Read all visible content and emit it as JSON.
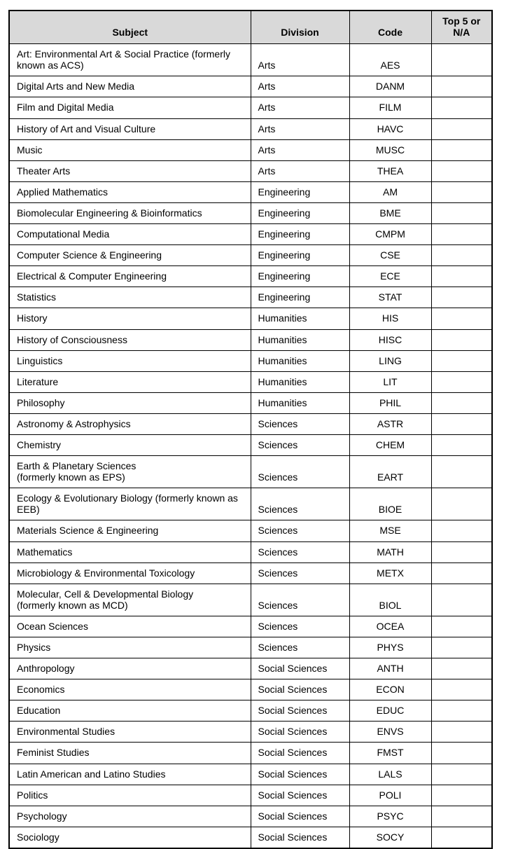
{
  "table": {
    "headers": [
      "Subject",
      "Division",
      "Code",
      "Top 5 or N/A"
    ],
    "rows": [
      {
        "subject": "Art: Environmental Art & Social Practice (formerly known as ACS)",
        "division": "Arts",
        "code": "AES",
        "top5": ""
      },
      {
        "subject": "Digital Arts and New Media",
        "division": "Arts",
        "code": "DANM",
        "top5": ""
      },
      {
        "subject": "Film and Digital Media",
        "division": "Arts",
        "code": "FILM",
        "top5": ""
      },
      {
        "subject": "History of Art and Visual Culture",
        "division": "Arts",
        "code": "HAVC",
        "top5": ""
      },
      {
        "subject": "Music",
        "division": "Arts",
        "code": "MUSC",
        "top5": ""
      },
      {
        "subject": "Theater Arts",
        "division": "Arts",
        "code": "THEA",
        "top5": ""
      },
      {
        "subject": "Applied Mathematics",
        "division": "Engineering",
        "code": "AM",
        "top5": ""
      },
      {
        "subject": "Biomolecular Engineering & Bioinformatics",
        "division": "Engineering",
        "code": "BME",
        "top5": ""
      },
      {
        "subject": "Computational Media",
        "division": "Engineering",
        "code": "CMPM",
        "top5": ""
      },
      {
        "subject": "Computer Science & Engineering",
        "division": "Engineering",
        "code": "CSE",
        "top5": ""
      },
      {
        "subject": "Electrical & Computer Engineering",
        "division": "Engineering",
        "code": "ECE",
        "top5": ""
      },
      {
        "subject": "Statistics",
        "division": "Engineering",
        "code": "STAT",
        "top5": ""
      },
      {
        "subject": "History",
        "division": "Humanities",
        "code": "HIS",
        "top5": ""
      },
      {
        "subject": "History of Consciousness",
        "division": "Humanities",
        "code": "HISC",
        "top5": ""
      },
      {
        "subject": "Linguistics",
        "division": "Humanities",
        "code": "LING",
        "top5": ""
      },
      {
        "subject": "Literature",
        "division": "Humanities",
        "code": "LIT",
        "top5": ""
      },
      {
        "subject": "Philosophy",
        "division": "Humanities",
        "code": "PHIL",
        "top5": ""
      },
      {
        "subject": "Astronomy & Astrophysics",
        "division": "Sciences",
        "code": "ASTR",
        "top5": ""
      },
      {
        "subject": "Chemistry",
        "division": "Sciences",
        "code": "CHEM",
        "top5": ""
      },
      {
        "subject": "Earth & Planetary Sciences\n(formerly known as EPS)",
        "division": "Sciences",
        "code": "EART",
        "top5": ""
      },
      {
        "subject": "Ecology & Evolutionary Biology (formerly known as EEB)",
        "division": "Sciences",
        "code": "BIOE",
        "top5": ""
      },
      {
        "subject": "Materials Science & Engineering",
        "division": "Sciences",
        "code": "MSE",
        "top5": ""
      },
      {
        "subject": "Mathematics",
        "division": "Sciences",
        "code": "MATH",
        "top5": ""
      },
      {
        "subject": "Microbiology & Environmental Toxicology",
        "division": "Sciences",
        "code": "METX",
        "top5": ""
      },
      {
        "subject": "Molecular, Cell & Developmental Biology\n(formerly known as MCD)",
        "division": "Sciences",
        "code": "BIOL",
        "top5": ""
      },
      {
        "subject": "Ocean Sciences",
        "division": "Sciences",
        "code": "OCEA",
        "top5": ""
      },
      {
        "subject": "Physics",
        "division": "Sciences",
        "code": "PHYS",
        "top5": ""
      },
      {
        "subject": "Anthropology",
        "division": "Social Sciences",
        "code": "ANTH",
        "top5": ""
      },
      {
        "subject": "Economics",
        "division": "Social Sciences",
        "code": "ECON",
        "top5": ""
      },
      {
        "subject": "Education",
        "division": "Social Sciences",
        "code": "EDUC",
        "top5": ""
      },
      {
        "subject": "Environmental Studies",
        "division": "Social Sciences",
        "code": "ENVS",
        "top5": ""
      },
      {
        "subject": "Feminist Studies",
        "division": "Social Sciences",
        "code": "FMST",
        "top5": ""
      },
      {
        "subject": "Latin American and Latino Studies",
        "division": "Social Sciences",
        "code": "LALS",
        "top5": ""
      },
      {
        "subject": "Politics",
        "division": "Social Sciences",
        "code": "POLI",
        "top5": ""
      },
      {
        "subject": "Psychology",
        "division": "Social Sciences",
        "code": "PSYC",
        "top5": ""
      },
      {
        "subject": "Sociology",
        "division": "Social Sciences",
        "code": "SOCY",
        "top5": ""
      }
    ]
  },
  "style": {
    "header_bg": "#d9d9d9",
    "border_color": "#000000",
    "text_color": "#000000"
  }
}
